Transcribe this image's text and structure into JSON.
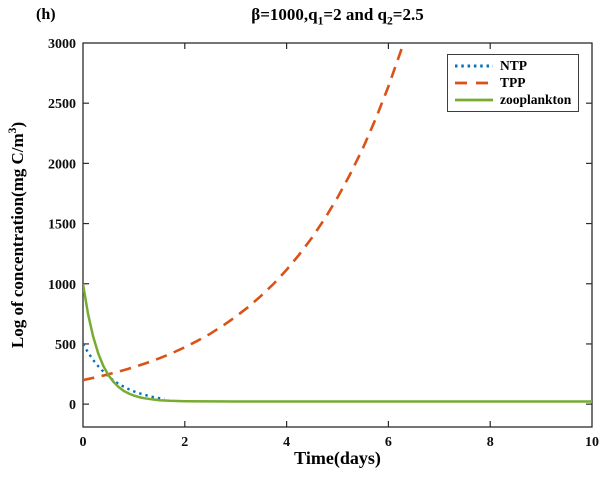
{
  "chart_data": {
    "type": "line",
    "panel_label": "(h)",
    "title": "β=1000,q1=2 and q2=2.5",
    "title_segments": [
      {
        "text": "β=1000,q"
      },
      {
        "sub": "1"
      },
      {
        "text": "=2 and q"
      },
      {
        "sub": "2"
      },
      {
        "text": "=2.5"
      }
    ],
    "xlabel": "Time(days)",
    "ylabel": "Log of concentration(mg C/m3)",
    "ylabel_segments": [
      {
        "text": "Log of concentration(mg C/m"
      },
      {
        "sup": "3"
      },
      {
        "text": ")"
      }
    ],
    "axes": {
      "xlim": [
        0,
        10
      ],
      "ylim": [
        0,
        3000
      ],
      "x_ticks": [
        0,
        2,
        4,
        6,
        8,
        10
      ],
      "y_ticks": [
        0,
        500,
        1000,
        1500,
        2000,
        2500,
        3000
      ],
      "grid": false,
      "box": true
    },
    "legend": {
      "position": "top-right",
      "border": true
    },
    "colors": {
      "ntp_blue": "#0072BD",
      "tpp_orange": "#D95319",
      "zooplankton_green": "#77AC30",
      "axis": "#2b2b2b"
    },
    "series": [
      {
        "name": "NTP",
        "color": "#0072BD",
        "line_style": "dotted",
        "legend_dash": "2.5 3.8",
        "points": [
          [
            0,
            500
          ],
          [
            0.1,
            428
          ],
          [
            0.2,
            367
          ],
          [
            0.3,
            314
          ],
          [
            0.4,
            269
          ],
          [
            0.5,
            230
          ],
          [
            0.6,
            197
          ],
          [
            0.7,
            169
          ],
          [
            0.8,
            145
          ],
          [
            0.9,
            124
          ],
          [
            1.0,
            106
          ],
          [
            1.1,
            91
          ],
          [
            1.2,
            78
          ],
          [
            1.3,
            67
          ],
          [
            1.4,
            57
          ],
          [
            1.5,
            49
          ],
          [
            1.6,
            42
          ]
        ]
      },
      {
        "name": "TPP",
        "color": "#D95319",
        "line_style": "dashed",
        "legend_dash": "12 9",
        "points": [
          [
            0,
            200
          ],
          [
            0.25,
            222
          ],
          [
            0.5,
            248
          ],
          [
            0.75,
            276
          ],
          [
            1,
            307
          ],
          [
            1.25,
            342
          ],
          [
            1.5,
            381
          ],
          [
            1.75,
            424
          ],
          [
            2,
            472
          ],
          [
            2.25,
            526
          ],
          [
            2.5,
            585
          ],
          [
            2.75,
            652
          ],
          [
            3,
            726
          ],
          [
            3.25,
            808
          ],
          [
            3.5,
            900
          ],
          [
            3.75,
            1002
          ],
          [
            4,
            1116
          ],
          [
            4.25,
            1243
          ],
          [
            4.5,
            1384
          ],
          [
            4.75,
            1541
          ],
          [
            5,
            1716
          ],
          [
            5.25,
            1911
          ],
          [
            5.5,
            2128
          ],
          [
            5.75,
            2370
          ],
          [
            6,
            2639
          ],
          [
            6.25,
            2939
          ],
          [
            6.45,
            3180
          ]
        ]
      },
      {
        "name": "zooplankton",
        "color": "#77AC30",
        "line_style": "solid",
        "legend_dash": "none",
        "points": [
          [
            0,
            1000
          ],
          [
            0.1,
            746
          ],
          [
            0.2,
            559
          ],
          [
            0.3,
            420
          ],
          [
            0.4,
            316
          ],
          [
            0.5,
            240
          ],
          [
            0.6,
            185
          ],
          [
            0.7,
            142
          ],
          [
            0.8,
            110
          ],
          [
            0.9,
            88
          ],
          [
            1.0,
            71
          ],
          [
            1.1,
            58
          ],
          [
            1.2,
            49
          ],
          [
            1.35,
            40
          ],
          [
            1.5,
            33
          ],
          [
            1.7,
            28
          ],
          [
            2.0,
            24
          ],
          [
            2.5,
            23
          ],
          [
            3,
            22
          ],
          [
            4,
            22
          ],
          [
            5,
            22
          ],
          [
            6,
            22
          ],
          [
            7,
            22
          ],
          [
            8,
            22
          ],
          [
            9,
            22
          ],
          [
            10,
            22
          ]
        ]
      }
    ]
  }
}
